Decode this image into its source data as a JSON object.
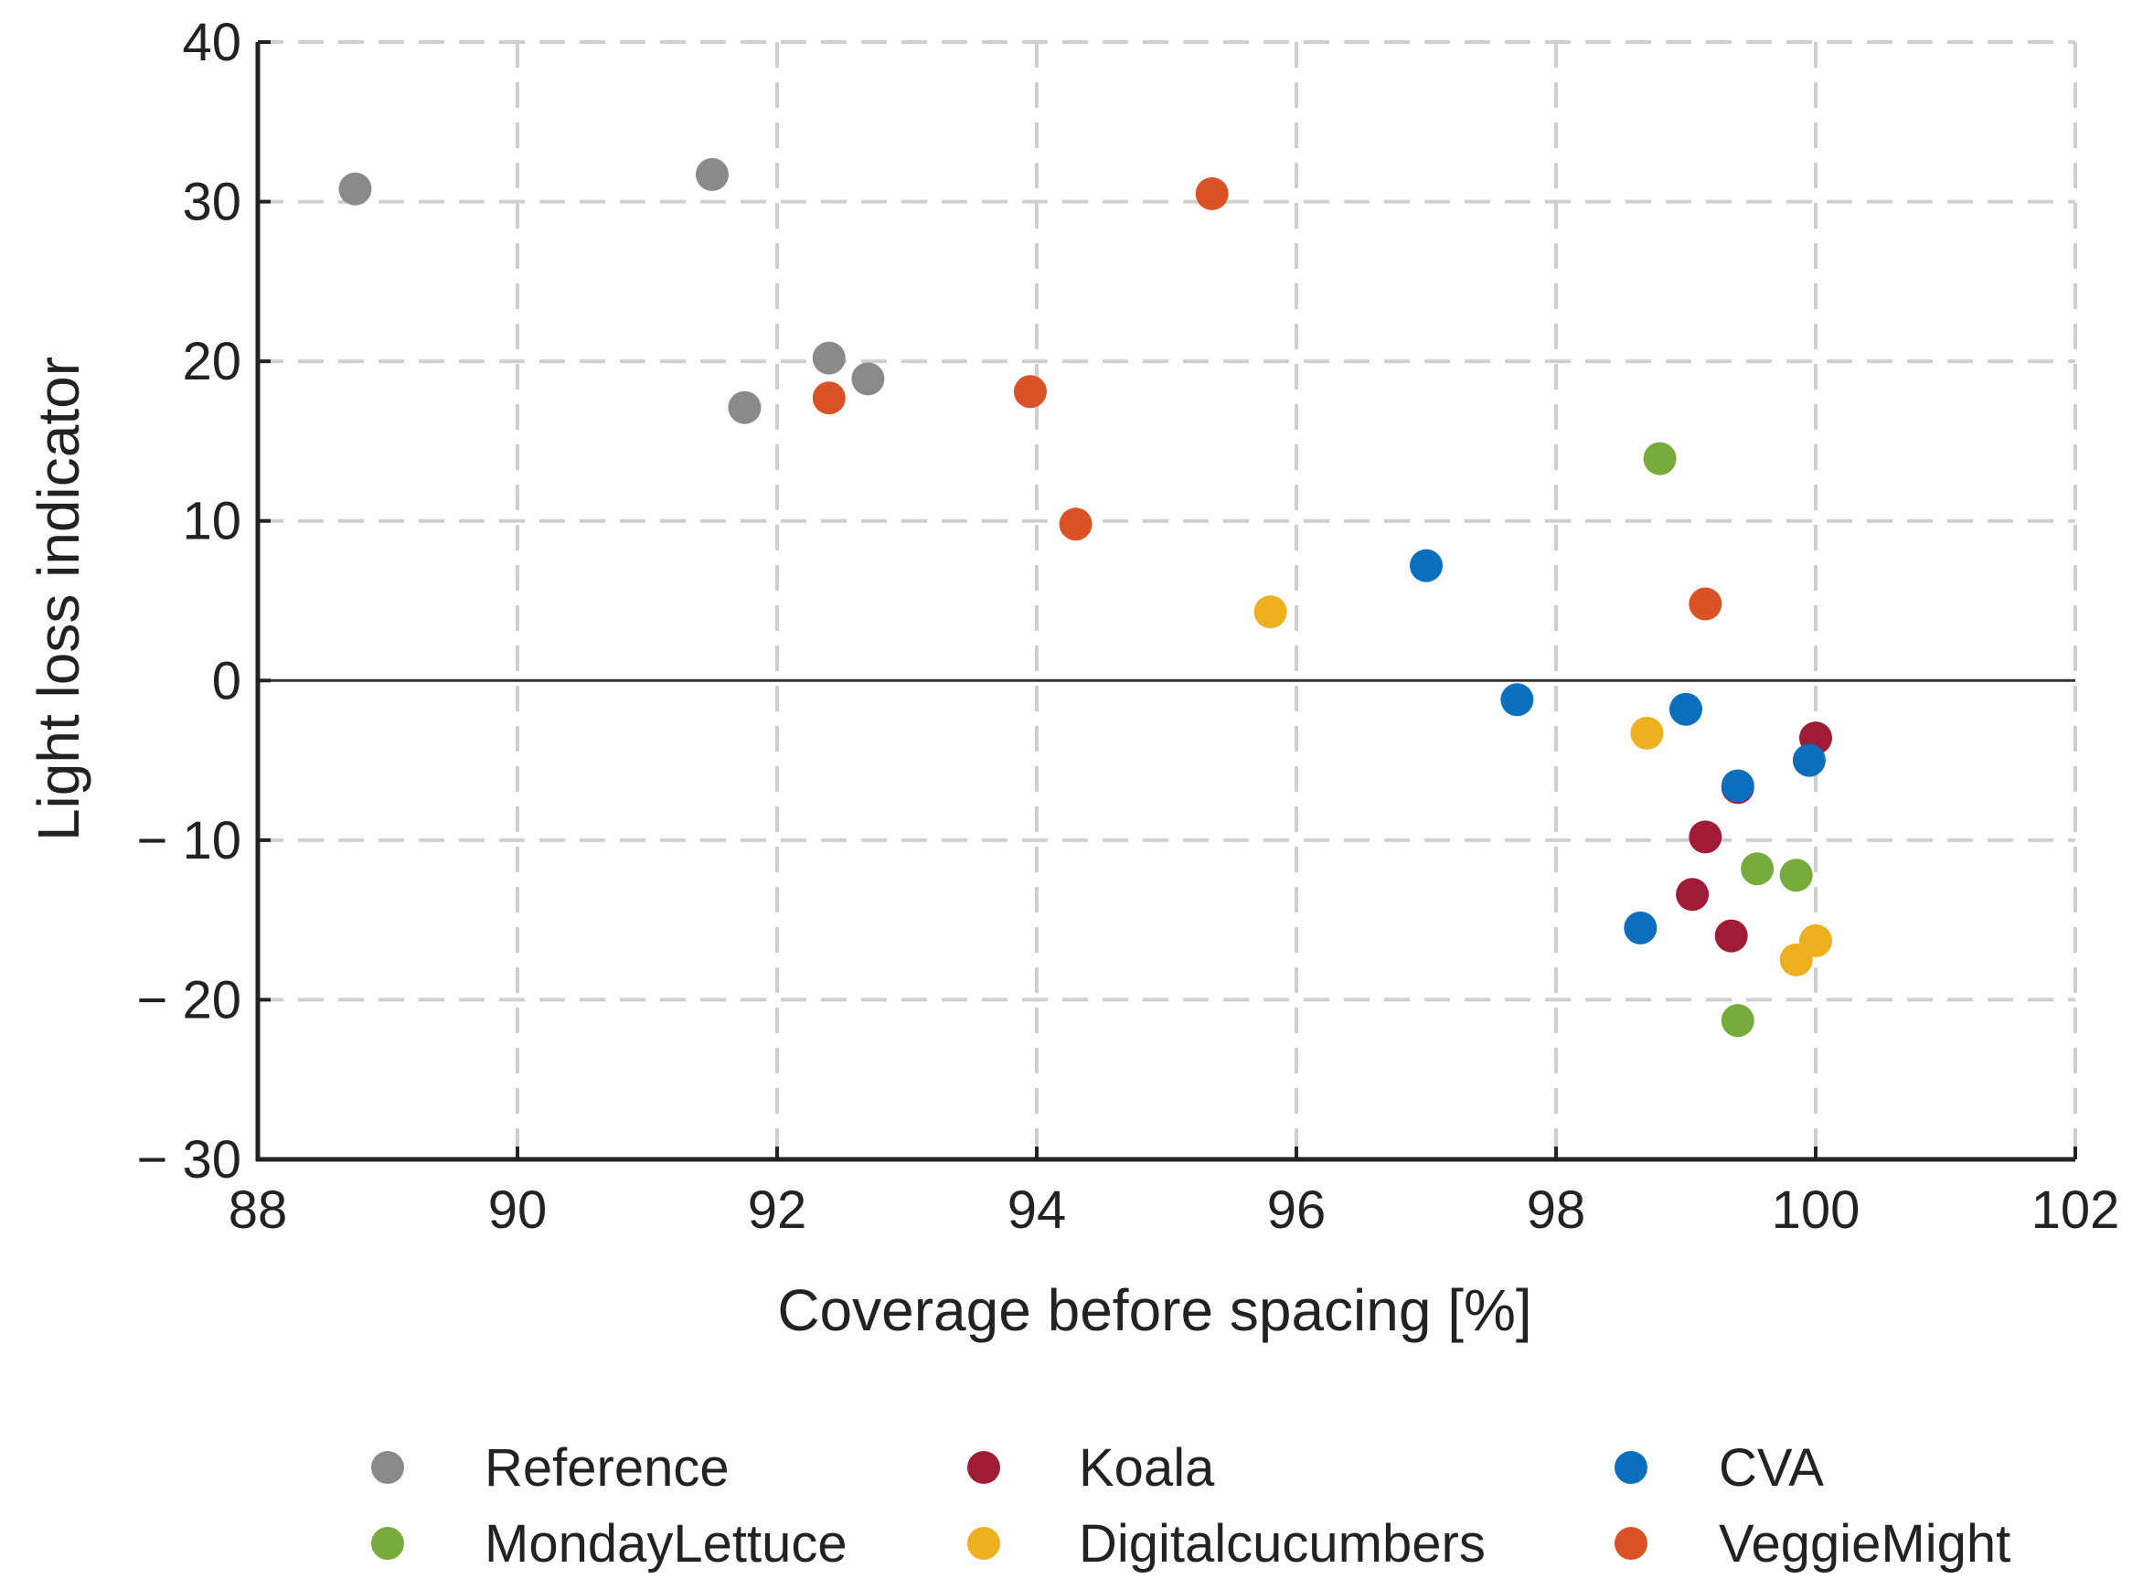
{
  "chart_data": {
    "type": "scatter",
    "title": "",
    "xlabel": "Coverage before spacing [%]",
    "ylabel": "Light loss indicator",
    "xlim": [
      88,
      102
    ],
    "ylim": [
      -30,
      40
    ],
    "xticks": [
      88,
      90,
      92,
      94,
      96,
      98,
      100,
      102
    ],
    "yticks": [
      40,
      30,
      20,
      10,
      0,
      -10,
      -20,
      -30
    ],
    "xtick_labels": [
      "88",
      "90",
      "92",
      "94",
      "96",
      "98",
      "100",
      "102"
    ],
    "ytick_labels": [
      "40",
      "30",
      "20",
      "10",
      "0",
      "− 10",
      "− 20",
      "− 30"
    ],
    "grid": true,
    "zero_line": true,
    "legend_position": "bottom",
    "series": [
      {
        "name": "Reference",
        "color": "#8a8a8a",
        "points": [
          [
            88.75,
            30.8
          ],
          [
            91.5,
            31.7
          ],
          [
            91.75,
            17.1
          ],
          [
            92.4,
            20.2
          ],
          [
            92.7,
            18.9
          ]
        ]
      },
      {
        "name": "Koala",
        "color": "#a01b35",
        "points": [
          [
            100.0,
            -3.6
          ],
          [
            99.4,
            -6.7
          ],
          [
            99.15,
            -9.8
          ],
          [
            99.05,
            -13.4
          ],
          [
            99.35,
            -16.0
          ]
        ]
      },
      {
        "name": "CVA",
        "color": "#0a70bd",
        "points": [
          [
            97.0,
            7.2
          ],
          [
            97.7,
            -1.2
          ],
          [
            99.0,
            -1.8
          ],
          [
            99.95,
            -5.0
          ],
          [
            99.4,
            -6.6
          ],
          [
            98.65,
            -15.5
          ]
        ]
      },
      {
        "name": "MondayLettuce",
        "color": "#77ab3c",
        "points": [
          [
            98.8,
            13.9
          ],
          [
            99.55,
            -11.8
          ],
          [
            99.85,
            -12.2
          ],
          [
            99.4,
            -21.3
          ]
        ]
      },
      {
        "name": "Digitalcucumbers",
        "color": "#edb120",
        "points": [
          [
            95.8,
            4.3
          ],
          [
            98.7,
            -3.3
          ],
          [
            100.0,
            -16.3
          ],
          [
            99.85,
            -17.5
          ]
        ]
      },
      {
        "name": "VeggieMight",
        "color": "#da5326",
        "points": [
          [
            95.35,
            30.5
          ],
          [
            92.4,
            17.7
          ],
          [
            93.95,
            18.1
          ],
          [
            94.3,
            9.8
          ],
          [
            99.15,
            4.8
          ]
        ]
      }
    ],
    "legend_order": [
      "Reference",
      "Koala",
      "CVA",
      "MondayLettuce",
      "Digitalcucumbers",
      "VeggieMight"
    ]
  }
}
